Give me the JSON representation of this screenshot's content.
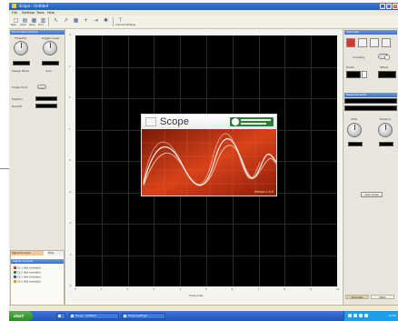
{
  "window": {
    "title": "Scope - Untitled",
    "controls": [
      "_",
      "□",
      "×"
    ]
  },
  "menu": [
    "File",
    "Settings",
    "Tools",
    "Help"
  ],
  "toolbar": {
    "tools": [
      {
        "icon": "new-file-icon",
        "glyph": "□",
        "label": "New"
      },
      {
        "icon": "open-folder-icon",
        "glyph": "▤",
        "label": "Open"
      },
      {
        "icon": "save-icon",
        "glyph": "▦",
        "label": "Save"
      },
      {
        "icon": "print-icon",
        "glyph": "▥",
        "label": "Print"
      },
      {
        "icon": "cursor-icon",
        "glyph": "↖",
        "label": ""
      },
      {
        "icon": "zoom-icon",
        "glyph": "↗",
        "label": ""
      },
      {
        "icon": "grid-icon",
        "glyph": "▦",
        "label": ""
      },
      {
        "icon": "plus-icon",
        "glyph": "+",
        "label": ""
      },
      {
        "icon": "arrow-icon",
        "glyph": "⇥",
        "label": ""
      },
      {
        "icon": "star-icon",
        "glyph": "✱",
        "label": ""
      },
      {
        "icon": "probe-icon",
        "glyph": "⊤",
        "label": "Channel Settings"
      }
    ]
  },
  "left_panel": {
    "header": "Horizontal Controls",
    "knob1_label": "Time/Div",
    "knob2_label": "Trigger Level",
    "lcd1": "",
    "lcd2": "",
    "mode_label": "Sweep Mode",
    "mode_value": "Auto",
    "oval_label": "Single Shot",
    "field1_label": "Position",
    "field2_label": "Holdoff"
  },
  "signals_panel": {
    "tabs": [
      "Signal Sources",
      "Files"
    ],
    "header": "Signal Sources",
    "items": [
      {
        "label": "Ch 1 (Not Available)",
        "color": "#e0342a"
      },
      {
        "label": "Ch 2 (Not Available)",
        "color": "#2a8a3a"
      },
      {
        "label": "Ch 3 (Not Available)",
        "color": "#2a56c8"
      },
      {
        "label": "Ch 4 (Not Available)",
        "color": "#d6a21c"
      }
    ]
  },
  "scope": {
    "x_axis_label": "Time (mS)",
    "ticks_x": [
      "0",
      "1",
      "2",
      "3",
      "4",
      "5",
      "6",
      "7",
      "8",
      "9",
      "10"
    ],
    "ticks_y": [
      "4",
      "3",
      "2",
      "1",
      "0",
      "-1",
      "-2",
      "-3",
      "-4"
    ],
    "grid_color": "#2a2a2a"
  },
  "splash": {
    "title": "Scope",
    "version": "Version 1.0.0",
    "accent": "#b32b10"
  },
  "right_panel": {
    "header": "Channels",
    "channel_colors": [
      "#e0342a",
      "#f2f2f2",
      "#f2f2f2",
      "#f2f2f2"
    ],
    "coupling_label": "Coupling",
    "probe_label": "Probe",
    "offset_label": "Offset",
    "readout_header": "Measurements",
    "knob1_label": "Volts",
    "knob2_label": "Position",
    "button_label": "Auto Scale",
    "tabs": [
      "Channels",
      "Math"
    ]
  },
  "statusbar": {
    "text": ""
  },
  "taskbar": {
    "start": "start",
    "tasks": [
      "",
      "Scope - Untitled",
      "Scope Settings"
    ],
    "clock": "12:00"
  }
}
